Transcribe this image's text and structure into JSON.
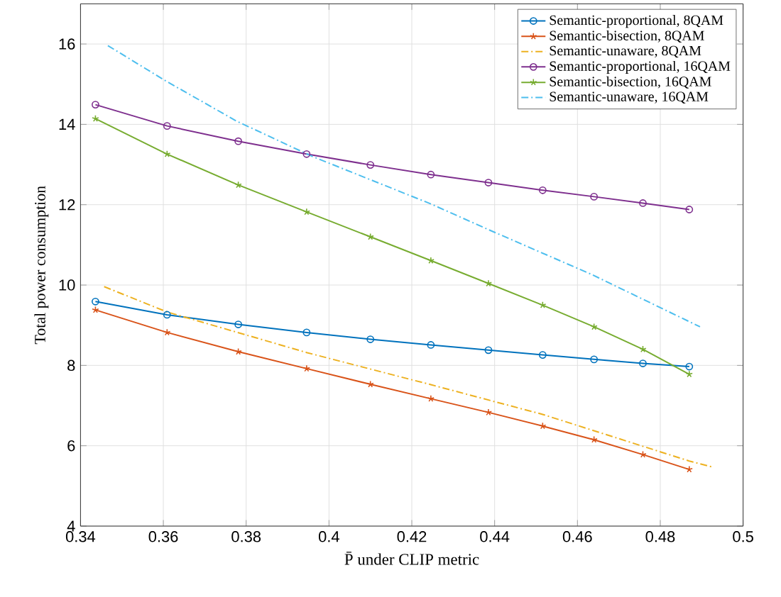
{
  "chart_data": {
    "type": "line",
    "xlabel": "P̄ under CLIP metric",
    "ylabel": "Total power consumption",
    "xlim": [
      0.34,
      0.5
    ],
    "ylim": [
      4,
      17
    ],
    "xticks": [
      0.34,
      0.36,
      0.38,
      0.4,
      0.42,
      0.44,
      0.46,
      0.48,
      0.5
    ],
    "yticks": [
      4,
      6,
      8,
      10,
      12,
      14,
      16
    ],
    "grid": true,
    "legend": "top right",
    "series": [
      {
        "name": "Semantic-proportional, 8QAM",
        "color": "#0072bd",
        "marker": "circle",
        "line_style": "solid",
        "x": [
          0.3436,
          0.3609,
          0.3781,
          0.3946,
          0.41,
          0.4246,
          0.4385,
          0.4516,
          0.464,
          0.4758,
          0.487
        ],
        "values": [
          9.59,
          9.26,
          9.02,
          8.82,
          8.65,
          8.51,
          8.38,
          8.26,
          8.15,
          8.05,
          7.97
        ]
      },
      {
        "name": "Semantic-bisection, 8QAM",
        "color": "#d95319",
        "marker": "cross",
        "line_style": "solid",
        "x": [
          0.3436,
          0.3609,
          0.3781,
          0.3946,
          0.41,
          0.4246,
          0.4385,
          0.4516,
          0.464,
          0.4758,
          0.487
        ],
        "values": [
          9.38,
          8.82,
          8.34,
          7.92,
          7.53,
          7.17,
          6.83,
          6.49,
          6.15,
          5.78,
          5.41
        ]
      },
      {
        "name": "Semantic-unaware, 8QAM",
        "color": "#edb120",
        "marker": "none",
        "line_style": "dashdot",
        "x": [
          0.3457,
          0.3609,
          0.3946,
          0.4246,
          0.4516,
          0.487,
          0.4926
        ],
        "values": [
          9.96,
          9.33,
          8.32,
          7.52,
          6.78,
          5.62,
          5.47
        ]
      },
      {
        "name": "Semantic-proportional, 16QAM",
        "color": "#7e2f8e",
        "marker": "circle",
        "line_style": "solid",
        "x": [
          0.3436,
          0.3609,
          0.3781,
          0.3946,
          0.41,
          0.4246,
          0.4385,
          0.4516,
          0.464,
          0.4758,
          0.487
        ],
        "values": [
          14.49,
          13.96,
          13.58,
          13.26,
          12.99,
          12.75,
          12.55,
          12.36,
          12.2,
          12.04,
          11.88
        ]
      },
      {
        "name": "Semantic-bisection, 16QAM",
        "color": "#77ac30",
        "marker": "cross",
        "line_style": "solid",
        "x": [
          0.3436,
          0.3609,
          0.3781,
          0.3946,
          0.41,
          0.4246,
          0.4385,
          0.4516,
          0.464,
          0.4758,
          0.487
        ],
        "values": [
          14.14,
          13.26,
          12.49,
          11.82,
          11.2,
          10.61,
          10.04,
          9.5,
          8.96,
          8.4,
          7.78
        ]
      },
      {
        "name": "Semantic-unaware, 16QAM",
        "color": "#4dbeee",
        "marker": "none",
        "line_style": "dashdot",
        "x": [
          0.3466,
          0.3606,
          0.3777,
          0.396,
          0.4246,
          0.4385,
          0.4635,
          0.4896
        ],
        "values": [
          15.96,
          15.08,
          14.08,
          13.2,
          12.02,
          11.38,
          10.26,
          8.96
        ]
      }
    ]
  }
}
